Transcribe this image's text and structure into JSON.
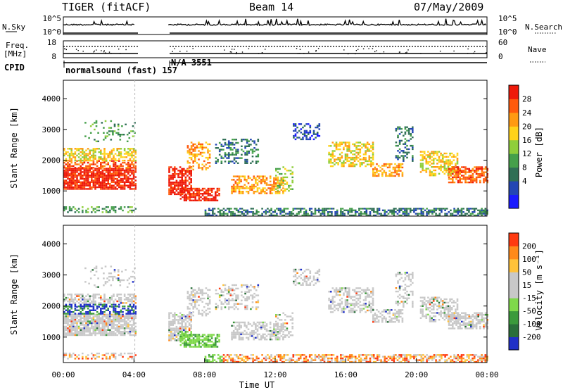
{
  "header": {
    "radar": "TIGER (fitACF)",
    "beam": "Beam 14",
    "date": "07/May/2009"
  },
  "nsky_panel": {
    "left_label": "N.Sky",
    "left_ticks": [
      "10^5",
      "10^0"
    ],
    "right_label": "N.Search",
    "right_ticks": [
      "10^5",
      "10^0"
    ]
  },
  "freq_panel": {
    "left_label_line1": "Freq.",
    "left_label_line2": "[MHz]",
    "left_ticks": [
      "18",
      "8"
    ],
    "right_label": "Nave",
    "right_ticks": [
      "60",
      "0"
    ]
  },
  "cpid": {
    "label": "CPID",
    "segments": [
      "normalsound (fast) 157",
      "N/A 3551"
    ]
  },
  "chart_data": [
    {
      "type": "heatmap",
      "title": "",
      "xlabel": "",
      "ylabel": "Slant Range [km]",
      "xlim": [
        0,
        24
      ],
      "ylim": [
        180,
        4600
      ],
      "yticks": [
        1000,
        2000,
        3000,
        4000
      ],
      "data_gap_hours": [
        4.05,
        5.95
      ],
      "colorbar": {
        "label": "Power [dB]",
        "ticks": [
          "28",
          "24",
          "20",
          "16",
          "12",
          "8",
          "4"
        ],
        "colors": [
          "#1a1aff",
          "#2346b4",
          "#2f6f55",
          "#45a04a",
          "#8fce3a",
          "#ffd21a",
          "#ff9a12",
          "#ff5a0c",
          "#ee1a0a"
        ],
        "range": [
          0,
          30
        ]
      }
    },
    {
      "type": "heatmap",
      "title": "",
      "xlabel": "Time UT",
      "ylabel": "Slant Range [km]",
      "xlim": [
        0,
        24
      ],
      "ylim": [
        180,
        4600
      ],
      "yticks": [
        1000,
        2000,
        3000,
        4000
      ],
      "xticks": [
        "00:00",
        "04:00",
        "08:00",
        "12:00",
        "16:00",
        "20:00",
        "00:00"
      ],
      "data_gap_hours": [
        4.05,
        5.95
      ],
      "colorbar": {
        "label": "Velocity [m s⁻¹]",
        "ticks": [
          "200",
          "100",
          "50",
          "15",
          "-15",
          "-50",
          "-100",
          "-200"
        ],
        "colors": [
          "#2030c8",
          "#2a6f3a",
          "#3b9a3b",
          "#7fd94a",
          "#c8c8c8",
          "#c8c8c8",
          "#ffc23a",
          "#ff8a1a",
          "#ff3a10"
        ],
        "range": [
          -250,
          250
        ]
      }
    }
  ]
}
